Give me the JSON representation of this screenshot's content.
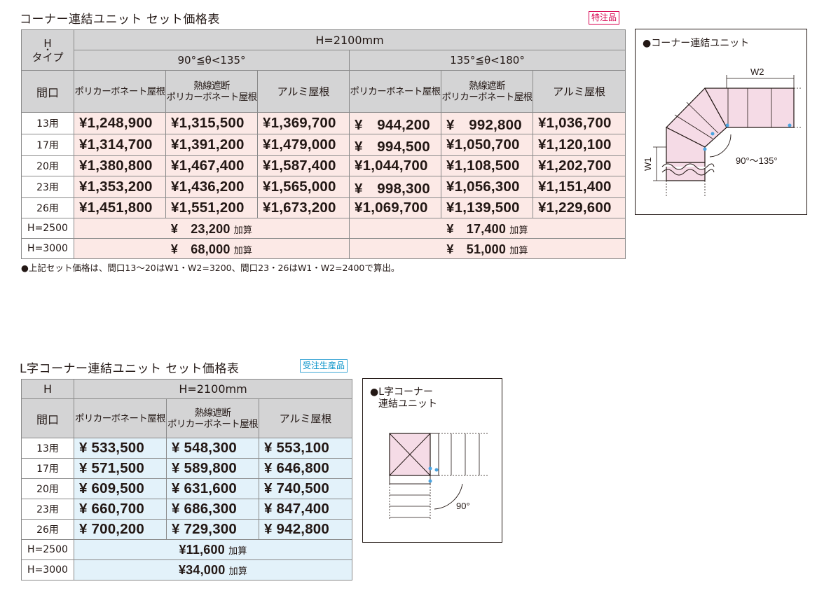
{
  "section1": {
    "title": "コーナー連結ユニット セット価格表",
    "tag": "特注品",
    "header": {
      "h_label": "H",
      "h_dot": "・",
      "type_label": "タイプ",
      "height_label": "H=2100mm",
      "angle_groups": [
        "90°≦θ<135°",
        "135°≦θ<180°"
      ],
      "frontage_label": "間口",
      "roof_types": [
        "ポリカーボネート屋根",
        "熱線遮断",
        "ポリカーボネート屋根",
        "アルミ屋根"
      ]
    },
    "rows": [
      {
        "label": "13用",
        "values": [
          "¥1,248,900",
          "¥1,315,500",
          "¥1,369,700",
          "¥　944,200",
          "¥　992,800",
          "¥1,036,700"
        ]
      },
      {
        "label": "17用",
        "values": [
          "¥1,314,700",
          "¥1,391,200",
          "¥1,479,000",
          "¥　994,500",
          "¥1,050,700",
          "¥1,120,100"
        ]
      },
      {
        "label": "20用",
        "values": [
          "¥1,380,800",
          "¥1,467,400",
          "¥1,587,400",
          "¥1,044,700",
          "¥1,108,500",
          "¥1,202,700"
        ]
      },
      {
        "label": "23用",
        "values": [
          "¥1,353,200",
          "¥1,436,200",
          "¥1,565,000",
          "¥　998,300",
          "¥1,056,300",
          "¥1,151,400"
        ]
      },
      {
        "label": "26用",
        "values": [
          "¥1,451,800",
          "¥1,551,200",
          "¥1,673,200",
          "¥1,069,700",
          "¥1,139,500",
          "¥1,229,600"
        ]
      }
    ],
    "additions": [
      {
        "label": "H=2500",
        "values": [
          "¥　23,200",
          "¥　17,400"
        ]
      },
      {
        "label": "H=3000",
        "values": [
          "¥　68,000",
          "¥　51,000"
        ]
      }
    ],
    "add_unit": "加算",
    "note": "●上記セット価格は、間口13～20はW1・W2=3200、間口23・26はW1・W2=2400で算出。",
    "diagram": {
      "caption": "●コーナー連結ユニット",
      "w1": "W1",
      "w2": "W2",
      "angle": "90°～135°"
    }
  },
  "section2": {
    "title": "L字コーナー連結ユニット セット価格表",
    "tag": "受注生産品",
    "header": {
      "h_label": "H",
      "height_label": "H=2100mm",
      "frontage_label": "間口",
      "roof_types": [
        "ポリカーボネート屋根",
        "熱線遮断",
        "ポリカーボネート屋根",
        "アルミ屋根"
      ]
    },
    "rows": [
      {
        "label": "13用",
        "values": [
          "¥ 533,500",
          "¥ 548,300",
          "¥ 553,100"
        ]
      },
      {
        "label": "17用",
        "values": [
          "¥ 571,500",
          "¥ 589,800",
          "¥ 646,800"
        ]
      },
      {
        "label": "20用",
        "values": [
          "¥ 609,500",
          "¥ 631,600",
          "¥ 740,500"
        ]
      },
      {
        "label": "23用",
        "values": [
          "¥ 660,700",
          "¥ 686,300",
          "¥ 847,400"
        ]
      },
      {
        "label": "26用",
        "values": [
          "¥ 700,200",
          "¥ 729,300",
          "¥ 942,800"
        ]
      }
    ],
    "additions": [
      {
        "label": "H=2500",
        "value": "¥11,600"
      },
      {
        "label": "H=3000",
        "value": "¥34,000"
      }
    ],
    "add_unit": "加算",
    "diagram": {
      "caption_line1": "●L字コーナー",
      "caption_line2": "連結ユニット",
      "angle": "90°"
    }
  }
}
